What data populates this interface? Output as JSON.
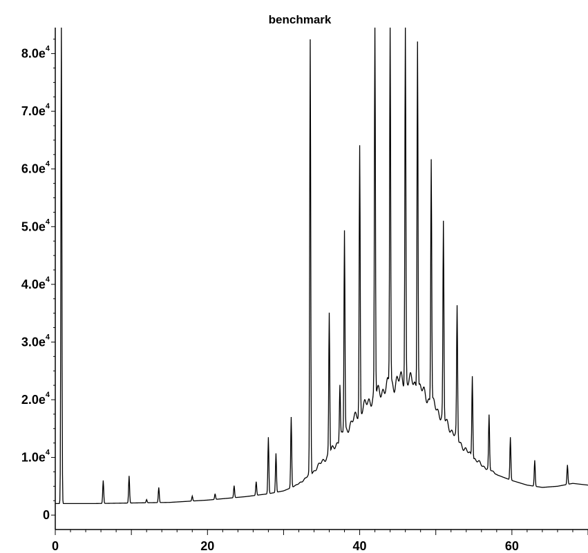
{
  "chart_data": {
    "type": "line",
    "title": "benchmark",
    "xlabel": "",
    "ylabel": "",
    "xlim": [
      0,
      70
    ],
    "ylim": [
      -2500,
      84500
    ],
    "x_ticks": [
      {
        "value": 0,
        "label": "0"
      },
      {
        "value": 20,
        "label": "20"
      },
      {
        "value": 40,
        "label": "40"
      },
      {
        "value": 60,
        "label": "60"
      }
    ],
    "y_ticks": [
      {
        "value": 0,
        "label": "0",
        "exp": ""
      },
      {
        "value": 10000,
        "label": "1.0e",
        "exp": "4"
      },
      {
        "value": 20000,
        "label": "2.0e",
        "exp": "4"
      },
      {
        "value": 30000,
        "label": "3.0e",
        "exp": "4"
      },
      {
        "value": 40000,
        "label": "4.0e",
        "exp": "4"
      },
      {
        "value": 50000,
        "label": "5.0e",
        "exp": "4"
      },
      {
        "value": 60000,
        "label": "6.0e",
        "exp": "4"
      },
      {
        "value": 70000,
        "label": "7.0e",
        "exp": "4"
      },
      {
        "value": 80000,
        "label": "8.0e",
        "exp": "4"
      }
    ],
    "baseline": {
      "x": [
        -0.5,
        0,
        5,
        10,
        15,
        20,
        25,
        28,
        30,
        32,
        34,
        36,
        38,
        40,
        42,
        44,
        46,
        47,
        48,
        50,
        52,
        54,
        56,
        58,
        60,
        62,
        64,
        66,
        68,
        70
      ],
      "y": [
        2000,
        2000,
        2000,
        2100,
        2200,
        2600,
        3200,
        3700,
        4200,
        5300,
        7300,
        10000,
        13500,
        16800,
        19500,
        21000,
        22000,
        21500,
        20500,
        17500,
        14000,
        10500,
        8300,
        7000,
        6000,
        5200,
        4800,
        5000,
        5500,
        5200
      ]
    },
    "peaks": [
      {
        "x": 0.8,
        "y": 84500
      },
      {
        "x": 6.3,
        "y": 6000
      },
      {
        "x": 9.7,
        "y": 6800
      },
      {
        "x": 12.0,
        "y": 2700
      },
      {
        "x": 13.6,
        "y": 4800
      },
      {
        "x": 18.0,
        "y": 3300
      },
      {
        "x": 21.0,
        "y": 3700
      },
      {
        "x": 23.5,
        "y": 5100
      },
      {
        "x": 26.4,
        "y": 5800
      },
      {
        "x": 28.0,
        "y": 13500
      },
      {
        "x": 29.0,
        "y": 10700
      },
      {
        "x": 31.0,
        "y": 17000
      },
      {
        "x": 33.5,
        "y": 82000
      },
      {
        "x": 36.0,
        "y": 34500
      },
      {
        "x": 37.4,
        "y": 22000
      },
      {
        "x": 38.0,
        "y": 48500
      },
      {
        "x": 40.0,
        "y": 63000
      },
      {
        "x": 42.0,
        "y": 84500
      },
      {
        "x": 44.0,
        "y": 84500
      },
      {
        "x": 46.0,
        "y": 84500
      },
      {
        "x": 47.6,
        "y": 82000
      },
      {
        "x": 49.4,
        "y": 61000
      },
      {
        "x": 51.0,
        "y": 49500
      },
      {
        "x": 52.8,
        "y": 35000
      },
      {
        "x": 54.8,
        "y": 24000
      },
      {
        "x": 57.0,
        "y": 17000
      },
      {
        "x": 59.8,
        "y": 13500
      },
      {
        "x": 63.0,
        "y": 9500
      },
      {
        "x": 67.3,
        "y": 8700
      }
    ]
  }
}
